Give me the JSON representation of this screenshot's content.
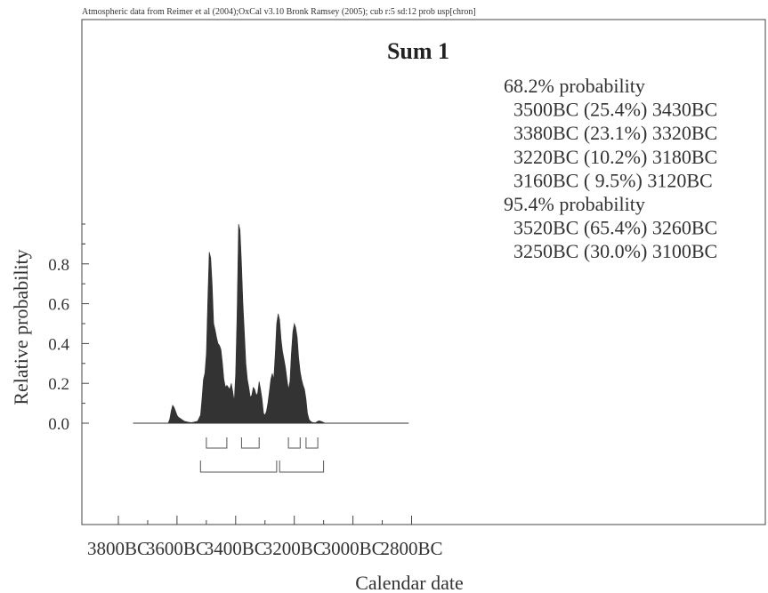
{
  "header": {
    "caption": "Atmospheric data from Reimer et al (2004);OxCal v3.10 Bronk Ramsey (2005); cub r:5 sd:12 prob usp[chron]"
  },
  "colors": {
    "fill": "#333333",
    "axis": "#444444",
    "background": "#ffffff"
  },
  "chart_data": {
    "type": "area",
    "title": "Sum 1",
    "xlabel": "Calendar date",
    "ylabel": "Relative probability",
    "x_unit": "year BC",
    "x_direction": "decreasing (older to the left)",
    "xlim": [
      3900,
      2780
    ],
    "ylim": [
      0,
      1.0
    ],
    "x_ticks": [
      {
        "value": 3800,
        "label": "3800BC"
      },
      {
        "value": 3600,
        "label": "3600BC"
      },
      {
        "value": 3400,
        "label": "3400BC"
      },
      {
        "value": 3200,
        "label": "3200BC"
      },
      {
        "value": 3000,
        "label": "3000BC"
      },
      {
        "value": 2800,
        "label": "2800BC"
      }
    ],
    "y_ticks": [
      {
        "value": 0.0,
        "label": "0.0"
      },
      {
        "value": 0.2,
        "label": "0.2"
      },
      {
        "value": 0.4,
        "label": "0.4"
      },
      {
        "value": 0.6,
        "label": "0.6"
      },
      {
        "value": 0.8,
        "label": "0.8"
      }
    ],
    "grid": false,
    "series": [
      {
        "x": [
          3750,
          3630,
          3625,
          3620,
          3615,
          3610,
          3605,
          3600,
          3595,
          3590,
          3585,
          3580,
          3575,
          3570,
          3560,
          3550,
          3530,
          3520,
          3515,
          3510,
          3505,
          3500,
          3495,
          3490,
          3485,
          3480,
          3475,
          3470,
          3465,
          3460,
          3455,
          3450,
          3445,
          3440,
          3435,
          3430,
          3425,
          3420,
          3415,
          3410,
          3405,
          3400,
          3395,
          3390,
          3385,
          3380,
          3375,
          3370,
          3365,
          3360,
          3355,
          3350,
          3345,
          3340,
          3335,
          3330,
          3325,
          3320,
          3315,
          3310,
          3305,
          3300,
          3295,
          3290,
          3285,
          3280,
          3275,
          3270,
          3265,
          3260,
          3255,
          3250,
          3245,
          3240,
          3235,
          3230,
          3225,
          3220,
          3215,
          3210,
          3205,
          3200,
          3195,
          3190,
          3185,
          3180,
          3175,
          3170,
          3165,
          3160,
          3155,
          3150,
          3145,
          3140,
          3135,
          3130,
          3125,
          3120,
          3115,
          3110,
          3105,
          3100,
          3095,
          3090,
          3080,
          3070,
          3060,
          3050,
          3040,
          3030,
          3000,
          2950,
          2900,
          2810
        ],
        "y": [
          0,
          0,
          0.02,
          0.06,
          0.09,
          0.08,
          0.06,
          0.04,
          0.03,
          0.025,
          0.02,
          0.015,
          0.01,
          0.008,
          0.005,
          0.003,
          0.01,
          0.04,
          0.12,
          0.22,
          0.25,
          0.35,
          0.62,
          0.86,
          0.83,
          0.7,
          0.5,
          0.47,
          0.43,
          0.4,
          0.39,
          0.37,
          0.3,
          0.22,
          0.18,
          0.19,
          0.18,
          0.17,
          0.2,
          0.16,
          0.11,
          0.25,
          0.55,
          1.0,
          0.97,
          0.8,
          0.6,
          0.45,
          0.3,
          0.22,
          0.18,
          0.13,
          0.14,
          0.18,
          0.17,
          0.14,
          0.15,
          0.21,
          0.17,
          0.12,
          0.05,
          0.04,
          0.06,
          0.1,
          0.16,
          0.22,
          0.25,
          0.22,
          0.35,
          0.5,
          0.55,
          0.52,
          0.42,
          0.36,
          0.32,
          0.28,
          0.22,
          0.17,
          0.21,
          0.35,
          0.46,
          0.5,
          0.48,
          0.43,
          0.33,
          0.26,
          0.22,
          0.19,
          0.17,
          0.12,
          0.05,
          0.02,
          0.01,
          0.005,
          0.003,
          0.002,
          0.005,
          0.01,
          0.012,
          0.01,
          0.007,
          0.004,
          0,
          0,
          0,
          0,
          0,
          0,
          0,
          0,
          0,
          0,
          0,
          0
        ]
      }
    ],
    "range_bars": [
      {
        "level": 1,
        "from": 3500,
        "to": 3430
      },
      {
        "level": 1,
        "from": 3380,
        "to": 3320
      },
      {
        "level": 1,
        "from": 3220,
        "to": 3180
      },
      {
        "level": 1,
        "from": 3160,
        "to": 3120
      },
      {
        "level": 2,
        "from": 3520,
        "to": 3260
      },
      {
        "level": 2,
        "from": 3250,
        "to": 3100
      }
    ],
    "legend": {
      "placement": "top-right",
      "lines": [
        "68.2% probability",
        "  3500BC (25.4%) 3430BC",
        "  3380BC (23.1%) 3320BC",
        "  3220BC (10.2%) 3180BC",
        "  3160BC ( 9.5%) 3120BC",
        "95.4% probability",
        "  3520BC (65.4%) 3260BC",
        "  3250BC (30.0%) 3100BC"
      ]
    }
  }
}
